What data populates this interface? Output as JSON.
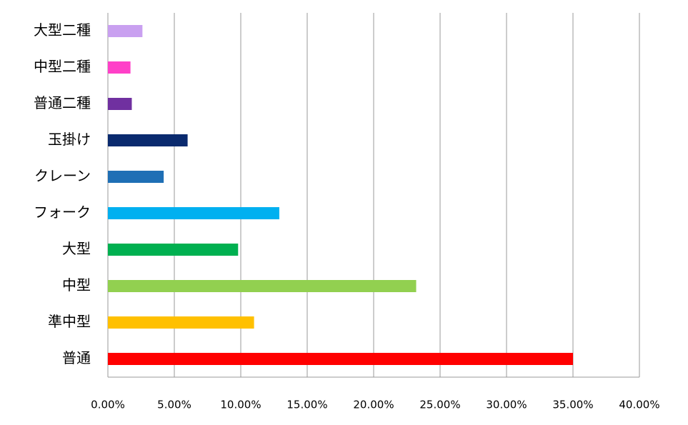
{
  "chart_data": {
    "type": "bar",
    "orientation": "horizontal",
    "categories": [
      "大型二種",
      "中型二種",
      "普通二種",
      "玉掛け",
      "クレーン",
      "フォーク",
      "大型",
      "中型",
      "準中型",
      "普通"
    ],
    "values": [
      2.6,
      1.7,
      1.8,
      6.0,
      4.2,
      12.9,
      9.8,
      23.2,
      11.0,
      35.0
    ],
    "colors": [
      "#c9a0f0",
      "#ff40c8",
      "#7030a0",
      "#0a2a6e",
      "#1f6fb5",
      "#00b0f0",
      "#00b050",
      "#92d050",
      "#ffc000",
      "#ff0000"
    ],
    "xlim": [
      0,
      40
    ],
    "xticks": [
      {
        "value": 0,
        "label": "0.00%"
      },
      {
        "value": 5,
        "label": "5.00%"
      },
      {
        "value": 10,
        "label": "10.00%"
      },
      {
        "value": 15,
        "label": "15.00%"
      },
      {
        "value": 20,
        "label": "20.00%"
      },
      {
        "value": 25,
        "label": "25.00%"
      },
      {
        "value": 30,
        "label": "30.00%"
      },
      {
        "value": 35,
        "label": "35.00%"
      },
      {
        "value": 40,
        "label": "40.00%"
      }
    ],
    "grid": true
  }
}
